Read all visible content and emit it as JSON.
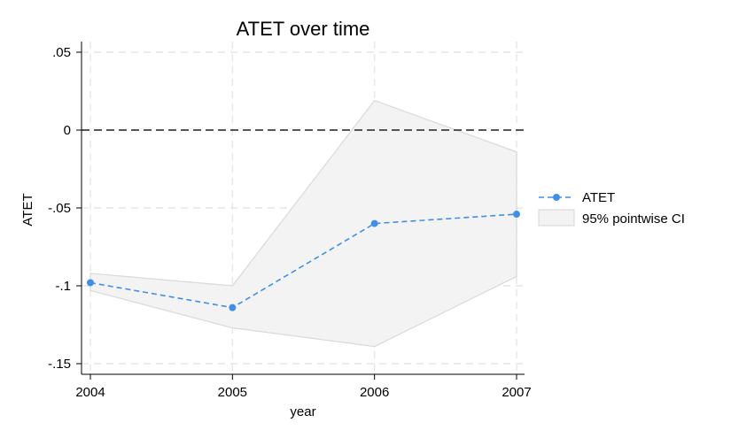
{
  "chart_data": {
    "type": "line",
    "title": "ATET over time",
    "xlabel": "year",
    "ylabel": "ATET",
    "x": [
      2004,
      2005,
      2006,
      2007
    ],
    "x_ticks": [
      "2004",
      "2005",
      "2006",
      "2007"
    ],
    "y_ticks": [
      0.05,
      0,
      -0.05,
      -0.1,
      -0.15
    ],
    "y_tick_labels": [
      ".05",
      "0",
      "-.05",
      "-.1",
      "-.15"
    ],
    "xlim": [
      2004,
      2007
    ],
    "ylim": [
      -0.155,
      0.055
    ],
    "grid": true,
    "reference_line": {
      "y": 0,
      "style": "dashed",
      "color": "#222222"
    },
    "series": [
      {
        "name": "ATET",
        "values": [
          -0.098,
          -0.114,
          -0.06,
          -0.054
        ],
        "color": "#3f8fe6",
        "style": "dashed",
        "marker": "circle"
      },
      {
        "name": "95% pointwise CI",
        "type": "area",
        "upper": [
          -0.092,
          -0.1,
          0.019,
          -0.014
        ],
        "lower": [
          -0.103,
          -0.127,
          -0.139,
          -0.094
        ],
        "color": "#f3f3f3",
        "edge_color": "#d9d9d9"
      }
    ],
    "legend": {
      "placement": "right",
      "entries": [
        "ATET",
        "95% pointwise CI"
      ]
    }
  }
}
